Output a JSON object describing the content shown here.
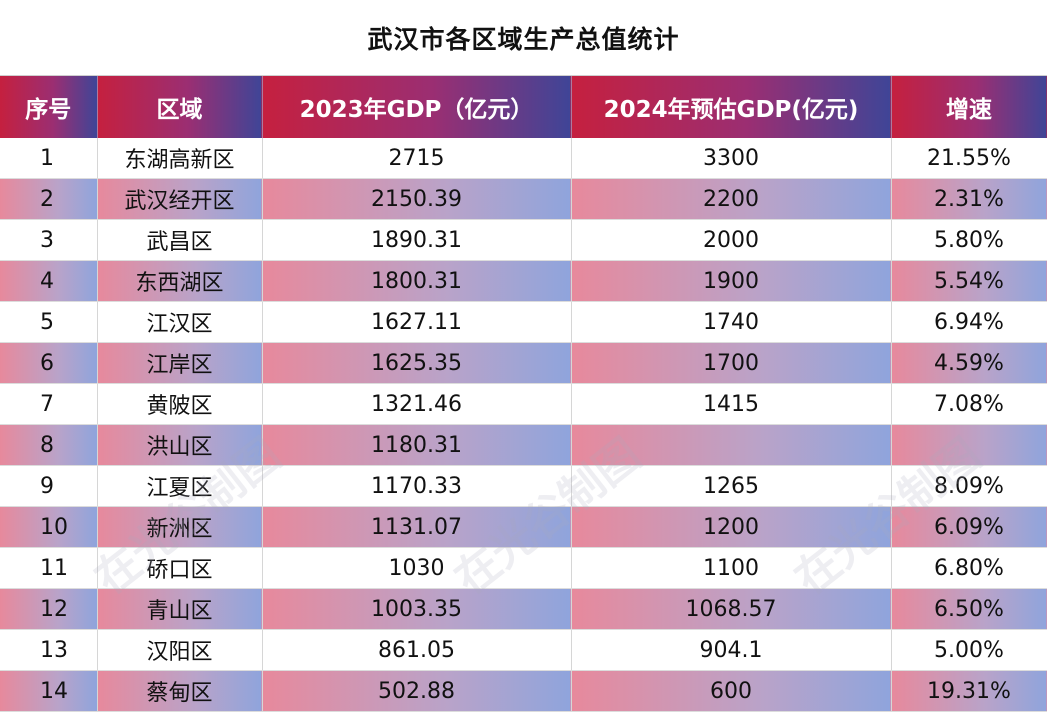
{
  "title": "武汉市各区域生产总值统计",
  "chart_data": {
    "type": "table",
    "columns": [
      "序号",
      "区域",
      "2023年GDP（亿元）",
      "2024年预估GDP(亿元)",
      "增速"
    ],
    "rows": [
      [
        "1",
        "东湖高新区",
        "2715",
        "3300",
        "21.55%"
      ],
      [
        "2",
        "武汉经开区",
        "2150.39",
        "2200",
        "2.31%"
      ],
      [
        "3",
        "武昌区",
        "1890.31",
        "2000",
        "5.80%"
      ],
      [
        "4",
        "东西湖区",
        "1800.31",
        "1900",
        "5.54%"
      ],
      [
        "5",
        "江汉区",
        "1627.11",
        "1740",
        "6.94%"
      ],
      [
        "6",
        "江岸区",
        "1625.35",
        "1700",
        "4.59%"
      ],
      [
        "7",
        "黄陂区",
        "1321.46",
        "1415",
        "7.08%"
      ],
      [
        "8",
        "洪山区",
        "1180.31",
        "",
        ""
      ],
      [
        "9",
        "江夏区",
        "1170.33",
        "1265",
        "8.09%"
      ],
      [
        "10",
        "新洲区",
        "1131.07",
        "1200",
        "6.09%"
      ],
      [
        "11",
        "硚口区",
        "1030",
        "1100",
        "6.80%"
      ],
      [
        "12",
        "青山区",
        "1003.35",
        "1068.57",
        "6.50%"
      ],
      [
        "13",
        "汉阳区",
        "861.05",
        "904.1",
        "5.00%"
      ],
      [
        "14",
        "蔡甸区",
        "502.88",
        "600",
        "19.31%"
      ]
    ]
  },
  "watermark": "在光谷制图"
}
